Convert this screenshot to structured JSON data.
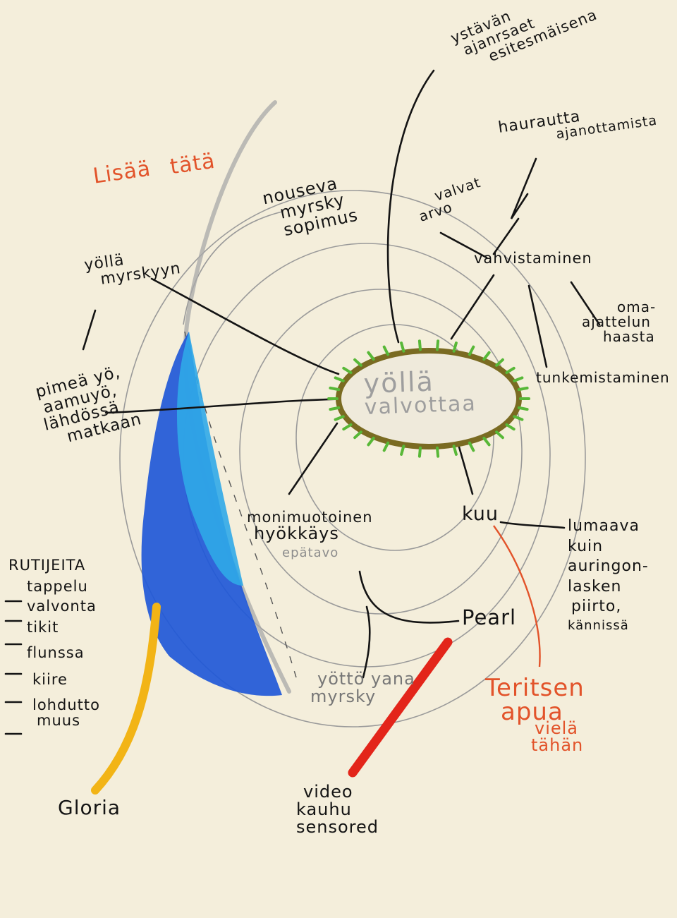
{
  "center": {
    "line1": "yöllä",
    "line2": "valvottaa"
  },
  "red_note_top": {
    "line1": "Lisää",
    "line2": "tätä"
  },
  "top_right": {
    "line1": "ystävän",
    "line2": "ajanrsaet",
    "line3": "esitesmäisena"
  },
  "hauraus": {
    "line1": "haurautta",
    "line2": "ajanottamista"
  },
  "nouseva": {
    "line1": "nouseva",
    "line2": "myrsky",
    "line3": "sopimus"
  },
  "arvo": {
    "line1": "valvat",
    "line2": "arvo"
  },
  "vahvistaminen": "vahvistaminen",
  "oma": {
    "line1": "oma-",
    "line2": "ajattelun",
    "line3": "haasta"
  },
  "tunkeminen": "tunkemistaminen",
  "yolla_myrskyyn": {
    "line1": "yöllä",
    "line2": "myrskyyn"
  },
  "pimea": {
    "line1": "pimeä yö,",
    "line2": "aamuyö,",
    "line3": "lähdössä",
    "line4": "matkaan"
  },
  "monimuotoinen": {
    "line1": "monimuotoinen",
    "line2": "hyökkäys"
  },
  "epatavo": "epätavo",
  "kuu": "kuu",
  "lumaava": {
    "line1": "lumaava",
    "line2": "kuin",
    "line3": "auringon-",
    "line4": "lasken",
    "line5": "piirto,",
    "line6": "kännissä"
  },
  "pearl": "Pearl",
  "yotto": {
    "line1": "yöttö yana",
    "line2": "myrsky"
  },
  "teritsen": {
    "line1": "Teritsen",
    "line2": "apua",
    "line3": "vielä",
    "line4": "tähän"
  },
  "ruutujeita": {
    "title": "RUTIJEITA",
    "items": [
      "tappelu",
      "valvonta",
      "tikit",
      "flunssa",
      "kiire",
      "lohdutto",
      "muus"
    ]
  },
  "gloria": "Gloria",
  "video": {
    "line1": "video",
    "line2": "kauhu",
    "line3": "sensored"
  },
  "colors": {
    "paper": "#f4eedb",
    "ink": "#141414",
    "pencil": "#8d8d8d",
    "red_crayon": "#e2532a",
    "blue_crayon": "#1f58d8",
    "light_blue": "#30a8e8",
    "yellow_crayon": "#f2b416",
    "green_crayon": "#58b838",
    "olive_ring": "#7a6b22"
  }
}
